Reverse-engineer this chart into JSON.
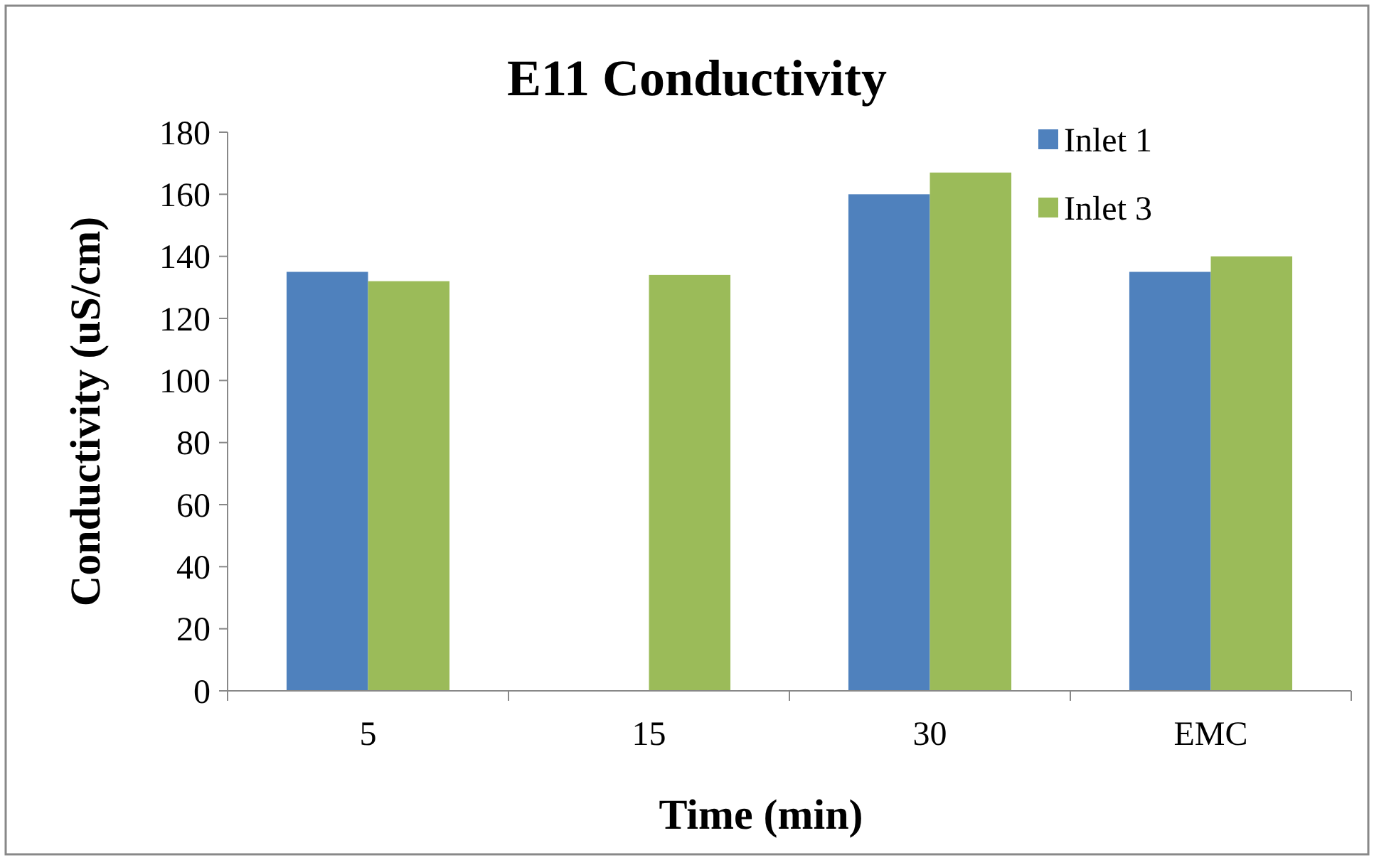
{
  "chart_data": {
    "type": "bar",
    "title": "E11 Conductivity",
    "xlabel": "Time (min)",
    "ylabel": "Conductivity (uS/cm)",
    "categories": [
      "5",
      "15",
      "30",
      "EMC"
    ],
    "series": [
      {
        "name": "Inlet 1",
        "color": "#4f81bd",
        "values": [
          135,
          null,
          160,
          135
        ]
      },
      {
        "name": "Inlet 3",
        "color": "#9bbb59",
        "values": [
          132,
          134,
          167,
          140
        ]
      }
    ],
    "ylim": [
      0,
      180
    ],
    "yticks": [
      0,
      20,
      40,
      60,
      80,
      100,
      120,
      140,
      160,
      180
    ],
    "grid": false,
    "legend": "top right"
  }
}
